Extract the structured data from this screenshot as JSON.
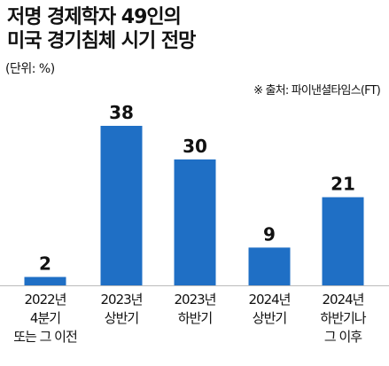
{
  "title_lines": [
    "저명 경제학자 49인의",
    "미국 경기침체 시기 전망"
  ],
  "unit": "(단위: %)",
  "source": "※ 출처: 파이낸셜타임스(FT)",
  "colors": {
    "bar": "#1f6fc5",
    "baseline": "#bbbbbb",
    "text": "#111111"
  },
  "chart_data": {
    "type": "bar",
    "title": "저명 경제학자 49인의 미국 경기침체 시기 전망",
    "unit": "(단위: %)",
    "categories": [
      [
        "2022년",
        "4분기",
        "또는 그 이전"
      ],
      [
        "2023년",
        "상반기"
      ],
      [
        "2023년",
        "하반기"
      ],
      [
        "2024년",
        "상반기"
      ],
      [
        "2024년",
        "하반기나",
        "그 이후"
      ]
    ],
    "values": [
      2,
      38,
      30,
      9,
      21
    ],
    "data_labels": [
      "2",
      "38",
      "30",
      "9",
      "21"
    ],
    "ylim": [
      0,
      38
    ],
    "grid": false,
    "legend": "none"
  }
}
